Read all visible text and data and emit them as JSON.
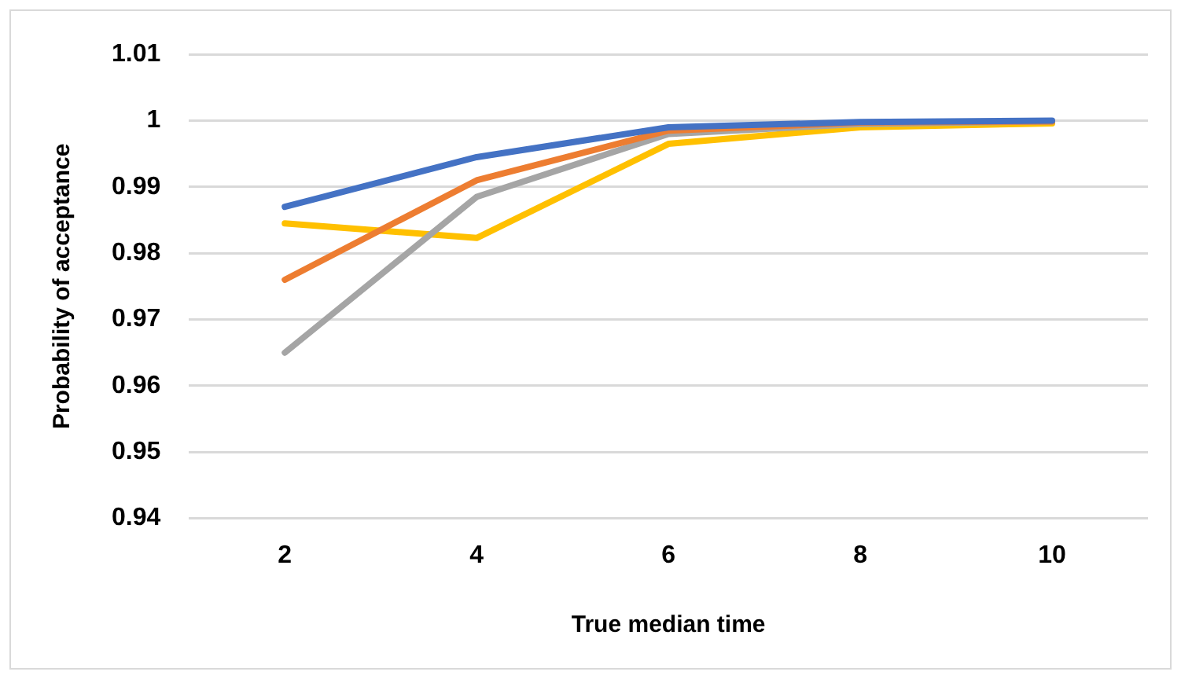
{
  "chart_data": {
    "type": "line",
    "xlabel": "True median time",
    "ylabel": "Probability of acceptance",
    "categories": [
      "2",
      "4",
      "6",
      "8",
      "10"
    ],
    "series": [
      {
        "color": "#4472c4",
        "values": [
          0.987,
          0.9945,
          0.999,
          0.9998,
          1.0
        ]
      },
      {
        "color": "#ed7d31",
        "values": [
          0.976,
          0.991,
          0.9985,
          0.9997,
          0.9999
        ]
      },
      {
        "color": "#a5a5a5",
        "values": [
          0.965,
          0.9885,
          0.998,
          0.9995,
          0.9999
        ]
      },
      {
        "color": "#ffc000",
        "values": [
          0.9845,
          0.9823,
          0.9965,
          0.999,
          0.9996
        ]
      }
    ],
    "ylim": [
      0.94,
      1.01
    ],
    "yticks": [
      0.94,
      0.95,
      0.96,
      0.97,
      0.98,
      0.99,
      1,
      1.01
    ],
    "grid": "y",
    "marker": "none",
    "line_style": "solid"
  }
}
